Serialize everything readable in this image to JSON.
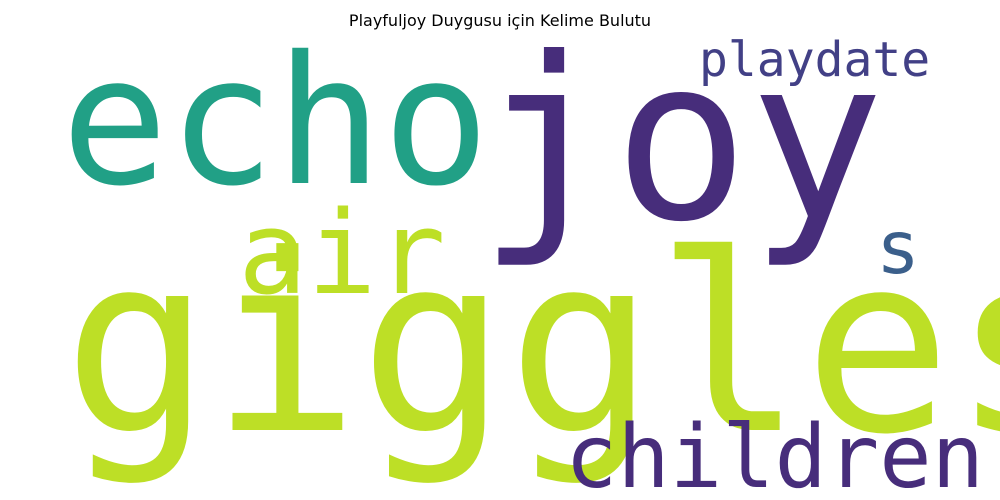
{
  "title": "Playfuljoy Duygusu için Kelime Bulutu",
  "words": [
    {
      "text": "joy",
      "color": "#472d7b"
    },
    {
      "text": "echo",
      "color": "#21a086"
    },
    {
      "text": "playdate",
      "color": "#424086"
    },
    {
      "text": "air",
      "color": "#bddf26"
    },
    {
      "text": "s",
      "color": "#3b5f8b"
    },
    {
      "text": "giggles",
      "color": "#bddf26"
    },
    {
      "text": "children",
      "color": "#472d7b"
    }
  ]
}
